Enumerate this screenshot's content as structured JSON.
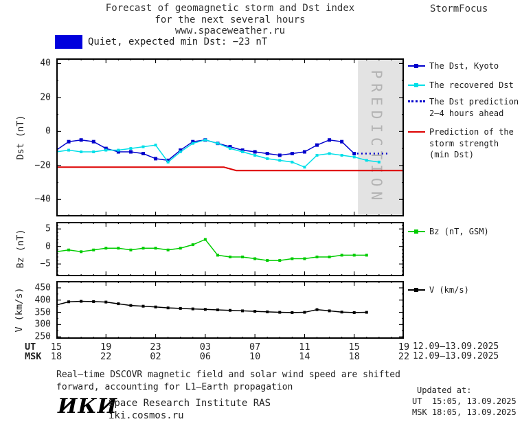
{
  "header": {
    "title_line1": "Forecast of geomagnetic storm and Dst index",
    "title_line2": "for the next several hours",
    "title_line3": "www.spaceweather.ru",
    "brand": "StormFocus"
  },
  "status": {
    "label": "Quiet, expected min Dst: −23 nT",
    "box_color": "#0000dd"
  },
  "legend": {
    "dst_kyoto": "The Dst, Kyoto",
    "recovered": "The recovered Dst",
    "prediction_line1": "The Dst prediction",
    "prediction_line2": "2–4 hours ahead",
    "strength_line1": "Prediction of the",
    "strength_line2": "storm strength",
    "strength_line3": "(min Dst)",
    "bz": "Bz (nT, GSM)",
    "v": "V (km/s)"
  },
  "axis": {
    "ut_label": "UT",
    "msk_label": "MSK",
    "ut_ticks": [
      "15",
      "19",
      "23",
      "03",
      "07",
      "11",
      "15",
      "19"
    ],
    "msk_ticks": [
      "18",
      "22",
      "02",
      "06",
      "10",
      "14",
      "18",
      "22"
    ],
    "ut_date": "12.09–13.09.2025",
    "msk_date": "12.09–13.09.2025"
  },
  "footnote": {
    "line1": "Real–time DSCOVR magnetic field and solar wind speed are shifted",
    "line2": "forward, accounting for L1–Earth propagation"
  },
  "footer": {
    "logo": "ИКИ",
    "institute": "Space Research Institute RAS",
    "site": "iki.cosmos.ru",
    "updated_label": "Updated at:",
    "updated_ut": "UT  15:05, 13.09.2025",
    "updated_msk": "MSK 18:05, 13.09.2025"
  },
  "chart_data": [
    {
      "id": "dst",
      "type": "line",
      "ylabel": "Dst (nT)",
      "ylim": [
        -50,
        43
      ],
      "yticks": [
        40,
        20,
        0,
        -20,
        -40
      ],
      "yminor": 10,
      "xlim": [
        0,
        28
      ],
      "xticks": [
        0,
        4,
        8,
        12,
        16,
        20,
        24,
        28
      ],
      "xminor": 1,
      "x_note": "hours from 15:00 UT 12.09.2025",
      "prediction_zone": {
        "start": 24.3,
        "label": "PREDICTION",
        "fill": "#e3e3e3",
        "text_color": "#b3b3b3"
      },
      "series": [
        {
          "name": "The Dst, Kyoto",
          "color": "#0000cc",
          "marker": 5,
          "width": 1.5,
          "x": [
            0,
            1,
            2,
            3,
            4,
            5,
            6,
            7,
            8,
            9,
            10,
            11,
            12,
            13,
            14,
            15,
            16,
            17,
            18,
            19,
            20,
            21,
            22,
            23,
            24
          ],
          "y": [
            -11,
            -6,
            -5,
            -6,
            -10,
            -12,
            -12,
            -13,
            -16,
            -17,
            -11,
            -6,
            -5,
            -7,
            -9,
            -11,
            -12,
            -13,
            -14,
            -13,
            -12,
            -8,
            -5,
            -6,
            -13
          ]
        },
        {
          "name": "The recovered Dst",
          "color": "#00dfe8",
          "marker": 4,
          "width": 1.5,
          "x": [
            0,
            1,
            2,
            3,
            4,
            5,
            6,
            7,
            8,
            9,
            10,
            11,
            12,
            13,
            14,
            15,
            16,
            17,
            18,
            19,
            20,
            21,
            22,
            23,
            24,
            25,
            26
          ],
          "y": [
            -12,
            -11,
            -12,
            -12,
            -11,
            -11,
            -10,
            -9,
            -8,
            -18,
            -12,
            -7,
            -5,
            -7,
            -10,
            -12,
            -14,
            -16,
            -17,
            -18,
            -21,
            -14,
            -13,
            -14,
            -15,
            -17,
            -18
          ]
        },
        {
          "name": "The Dst prediction 2–4 hours ahead",
          "color": "#0000cc",
          "marker": 0,
          "width": 2.5,
          "dash": "2,4",
          "x": [
            23.9,
            26.8
          ],
          "y": [
            -13,
            -13
          ]
        },
        {
          "name": "Prediction of the storm strength (min Dst)",
          "color": "#dd0000",
          "marker": 0,
          "width": 2,
          "x": [
            0,
            13.5,
            14.5,
            28
          ],
          "y": [
            -21,
            -21,
            -23,
            -23
          ]
        }
      ]
    },
    {
      "id": "bz",
      "type": "line",
      "ylabel": "Bz (nT)",
      "ylim": [
        -8.5,
        7
      ],
      "yticks": [
        5,
        0,
        -5
      ],
      "yminor": 1,
      "xlim": [
        0,
        28
      ],
      "xticks": [
        0,
        4,
        8,
        12,
        16,
        20,
        24,
        28
      ],
      "xminor": 1,
      "series": [
        {
          "name": "Bz (nT, GSM)",
          "color": "#00cc00",
          "marker": 4,
          "width": 1.5,
          "x": [
            0,
            1,
            2,
            3,
            4,
            5,
            6,
            7,
            8,
            9,
            10,
            11,
            12,
            13,
            14,
            15,
            16,
            17,
            18,
            19,
            20,
            21,
            22,
            23,
            24,
            25
          ],
          "y": [
            -1.5,
            -1,
            -1.5,
            -1,
            -0.5,
            -0.5,
            -1,
            -0.5,
            -0.5,
            -1,
            -0.5,
            0.5,
            2,
            -2.5,
            -3,
            -3,
            -3.5,
            -4,
            -4,
            -3.5,
            -3.5,
            -3,
            -3,
            -2.5,
            -2.5,
            -2.5
          ]
        }
      ]
    },
    {
      "id": "v",
      "type": "line",
      "ylabel": "V (km/s)",
      "ylim": [
        242,
        478
      ],
      "yticks": [
        450,
        400,
        350,
        300,
        250
      ],
      "yminor": 25,
      "xlim": [
        0,
        28
      ],
      "xticks": [
        0,
        4,
        8,
        12,
        16,
        20,
        24,
        28
      ],
      "xminor": 1,
      "series": [
        {
          "name": "V (km/s)",
          "color": "#000000",
          "marker": 4,
          "width": 1.5,
          "x": [
            0,
            1,
            2,
            3,
            4,
            5,
            6,
            7,
            8,
            9,
            10,
            11,
            12,
            13,
            14,
            15,
            16,
            17,
            18,
            19,
            20,
            21,
            22,
            23,
            24,
            25
          ],
          "y": [
            380,
            393,
            395,
            394,
            392,
            385,
            378,
            375,
            372,
            368,
            366,
            364,
            362,
            360,
            358,
            356,
            354,
            352,
            350,
            349,
            350,
            361,
            356,
            351,
            349,
            350
          ]
        }
      ]
    }
  ]
}
